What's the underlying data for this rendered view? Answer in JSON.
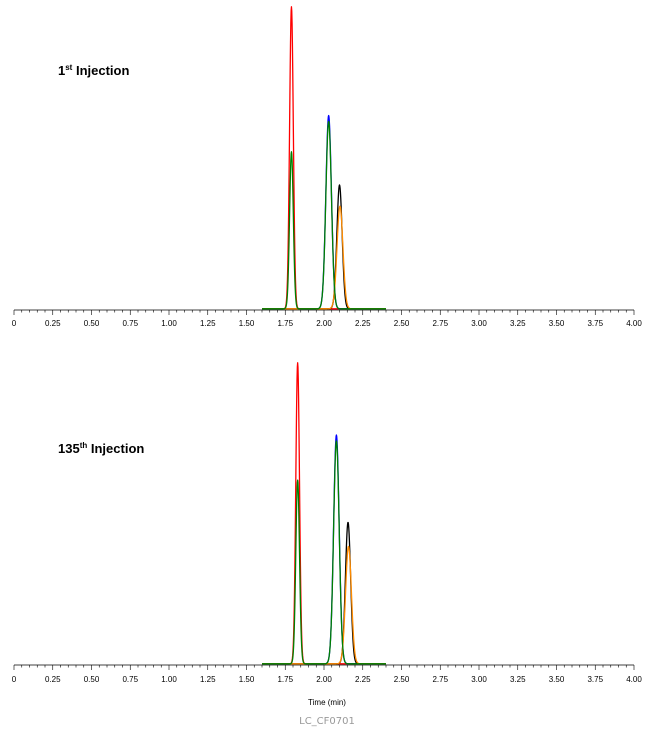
{
  "chart_data": [
    {
      "type": "line",
      "panel_label": {
        "base": "1",
        "sup": "st",
        "rest": " Injection"
      },
      "xlabel": "",
      "ylabel": "",
      "xlim": [
        0,
        4.0
      ],
      "x_ticks": [
        "0",
        "0.25",
        "0.50",
        "0.75",
        "1.00",
        "1.25",
        "1.50",
        "1.75",
        "2.00",
        "2.25",
        "2.50",
        "2.75",
        "3.00",
        "3.25",
        "3.50",
        "3.75",
        "4.00"
      ],
      "x_range": [
        1.6,
        2.4
      ],
      "ylim": [
        0,
        1.0
      ],
      "grid": false,
      "series": [
        {
          "color": "#ff0000",
          "peaks": [
            {
              "center": 1.79,
              "height": 1.0,
              "width": 0.012
            }
          ]
        },
        {
          "color": "#0000ff",
          "peaks": [
            {
              "center": 2.03,
              "height": 0.64,
              "width": 0.018
            }
          ]
        },
        {
          "color": "#000000",
          "peaks": [
            {
              "center": 2.1,
              "height": 0.41,
              "width": 0.017
            }
          ]
        },
        {
          "color": "#ff8c00",
          "peaks": [
            {
              "center": 2.103,
              "height": 0.34,
              "width": 0.019
            }
          ]
        },
        {
          "color": "#008000",
          "peaks": [
            {
              "center": 1.79,
              "height": 0.52,
              "width": 0.012
            },
            {
              "center": 2.03,
              "height": 0.62,
              "width": 0.018
            }
          ]
        }
      ]
    },
    {
      "type": "line",
      "panel_label": {
        "base": "135",
        "sup": "th",
        "rest": " Injection"
      },
      "xlabel": "Time (min)",
      "ylabel": "",
      "xlim": [
        0,
        4.0
      ],
      "x_ticks": [
        "0",
        "0.25",
        "0.50",
        "0.75",
        "1.00",
        "1.25",
        "1.50",
        "1.75",
        "2.00",
        "2.25",
        "2.50",
        "2.75",
        "3.00",
        "3.25",
        "3.50",
        "3.75",
        "4.00"
      ],
      "x_range": [
        1.6,
        2.4
      ],
      "ylim": [
        0,
        1.0
      ],
      "grid": false,
      "series": [
        {
          "color": "#ff0000",
          "peaks": [
            {
              "center": 1.83,
              "height": 1.0,
              "width": 0.012
            }
          ]
        },
        {
          "color": "#0000ff",
          "peaks": [
            {
              "center": 2.08,
              "height": 0.76,
              "width": 0.018
            }
          ]
        },
        {
          "color": "#000000",
          "peaks": [
            {
              "center": 2.155,
              "height": 0.47,
              "width": 0.017
            }
          ]
        },
        {
          "color": "#ff8c00",
          "peaks": [
            {
              "center": 2.158,
              "height": 0.39,
              "width": 0.019
            }
          ]
        },
        {
          "color": "#008000",
          "peaks": [
            {
              "center": 1.83,
              "height": 0.61,
              "width": 0.012
            },
            {
              "color": "#008000",
              "center": 2.08,
              "height": 0.74,
              "width": 0.018
            }
          ]
        }
      ]
    }
  ],
  "figure_id": "LC_CF0701"
}
